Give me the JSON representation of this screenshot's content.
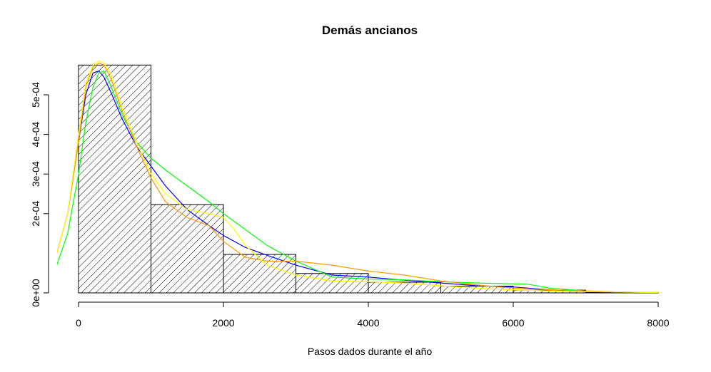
{
  "chart_data": {
    "type": "bar",
    "title": "Demás ancianos",
    "xlabel": "Pasos dados durante el año",
    "ylabel": "",
    "xlim": [
      -300,
      8100
    ],
    "ylim": [
      0,
      0.00058
    ],
    "x_ticks": [
      0,
      2000,
      4000,
      6000,
      8000
    ],
    "x_tick_labels": [
      "0",
      "2000",
      "4000",
      "6000",
      "8000"
    ],
    "y_ticks": [
      0,
      0.0002,
      0.0003,
      0.0004,
      0.0005
    ],
    "y_tick_labels": [
      "0e+00",
      "2e-04",
      "3e-04",
      "4e-04",
      "5e-04"
    ],
    "bins": [
      {
        "start": 0,
        "end": 1000,
        "density": 0.000575
      },
      {
        "start": 1000,
        "end": 2000,
        "density": 0.000223
      },
      {
        "start": 2000,
        "end": 3000,
        "density": 9.7e-05
      },
      {
        "start": 3000,
        "end": 4000,
        "density": 4.9e-05
      },
      {
        "start": 4000,
        "end": 5000,
        "density": 2.7e-05
      },
      {
        "start": 5000,
        "end": 6000,
        "density": 1.7e-05
      },
      {
        "start": 6000,
        "end": 7000,
        "density": 7e-06
      },
      {
        "start": 7000,
        "end": 8000,
        "density": 1e-06
      }
    ],
    "series": [
      {
        "color": "#0000ff",
        "x": [
          -300,
          -150,
          0,
          100,
          200,
          280,
          350,
          450,
          600,
          800,
          1000,
          1200,
          1500,
          1800,
          2000,
          2300,
          2600,
          3000,
          3500,
          4000,
          4500,
          5000,
          5500,
          6000,
          6500,
          7000,
          7500,
          8000
        ],
        "y": [
          0.0001,
          0.0002,
          0.00038,
          0.0005,
          0.000555,
          0.00056,
          0.000545,
          0.000505,
          0.00044,
          0.00037,
          0.00032,
          0.00027,
          0.00021,
          0.00017,
          0.000145,
          0.000115,
          9.5e-05,
          7e-05,
          4.5e-05,
          4e-05,
          3.2e-05,
          2.5e-05,
          1.8e-05,
          1.5e-05,
          8e-06,
          4e-06,
          2e-06,
          1e-06
        ]
      },
      {
        "color": "#00ff00",
        "x": [
          -300,
          -150,
          0,
          100,
          200,
          280,
          350,
          450,
          600,
          800,
          1000,
          1200,
          1500,
          1800,
          2000,
          2300,
          2600,
          3000,
          3500,
          4000,
          4500,
          5000,
          5500,
          6000,
          6200,
          6500,
          7000,
          7500,
          8000
        ],
        "y": [
          7e-05,
          0.00015,
          0.0003,
          0.00043,
          0.00052,
          0.000555,
          0.00056,
          0.00052,
          0.00045,
          0.00038,
          0.00034,
          0.00031,
          0.00027,
          0.00023,
          0.0002,
          0.00016,
          0.00012,
          8e-05,
          4e-05,
          3.5e-05,
          3.3e-05,
          2.8e-05,
          2.5e-05,
          2.3e-05,
          2.2e-05,
          1.2e-05,
          5e-06,
          2e-06,
          1e-06
        ]
      },
      {
        "color": "#ff9900",
        "x": [
          -300,
          -150,
          0,
          100,
          200,
          280,
          350,
          450,
          600,
          800,
          1000,
          1200,
          1500,
          1800,
          2000,
          2300,
          2600,
          3000,
          3500,
          4000,
          4500,
          5000,
          5500,
          6000,
          6500,
          7000,
          7500,
          8000
        ],
        "y": [
          0.0001,
          0.0002,
          0.00038,
          0.00052,
          0.00057,
          0.00058,
          0.000575,
          0.00054,
          0.00046,
          0.00037,
          0.00029,
          0.00023,
          0.00019,
          0.00017,
          0.00013,
          9e-05,
          8e-05,
          8e-05,
          7e-05,
          5.5e-05,
          4.5e-05,
          3e-05,
          2e-05,
          1.2e-05,
          8e-06,
          5e-06,
          2e-06,
          1e-06
        ]
      },
      {
        "color": "#ffff00",
        "x": [
          -300,
          -150,
          0,
          100,
          200,
          280,
          350,
          450,
          600,
          800,
          1000,
          1200,
          1500,
          1800,
          2000,
          2150,
          2300,
          2600,
          3000,
          3500,
          4000,
          4500,
          5000,
          5500,
          6000,
          6500,
          7000,
          7500,
          8000
        ],
        "y": [
          0.0001,
          0.0002,
          0.0004,
          0.00053,
          0.000575,
          0.000585,
          0.00058,
          0.00055,
          0.00047,
          0.00038,
          0.0003,
          0.00025,
          0.00021,
          0.0002,
          0.00019,
          0.00016,
          0.00012,
          7e-05,
          4.5e-05,
          3e-05,
          2.8e-05,
          2.5e-05,
          1.8e-05,
          1.2e-05,
          8e-06,
          5e-06,
          3e-06,
          2e-06,
          1e-06
        ]
      }
    ]
  }
}
